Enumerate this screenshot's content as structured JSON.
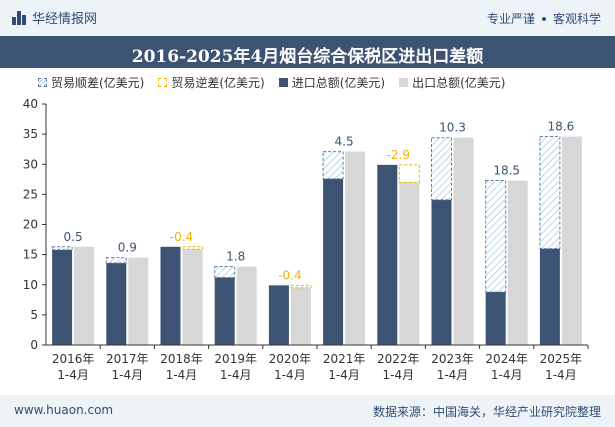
{
  "header": {
    "brand": "华经情报网",
    "tagline_left": "专业严谨",
    "tagline_right": "客观科学"
  },
  "footer": {
    "website": "www.huaon.com",
    "source": "数据来源：中国海关，华经产业研究院整理"
  },
  "colors": {
    "import": "#3d5373",
    "export": "#d7d7d7",
    "surplus_border": "#5b7fa8",
    "surplus_label": "#3d5373",
    "deficit_border": "#f0b400",
    "deficit_label": "#f0b400",
    "header_bg": "#3d5373"
  },
  "chart_data": {
    "type": "bar",
    "title": "2016-2025年4月烟台综合保税区进出口差额",
    "categories": [
      [
        "2016年",
        "1-4月"
      ],
      [
        "2017年",
        "1-4月"
      ],
      [
        "2018年",
        "1-4月"
      ],
      [
        "2019年",
        "1-4月"
      ],
      [
        "2020年",
        "1-4月"
      ],
      [
        "2021年",
        "1-4月"
      ],
      [
        "2022年",
        "1-4月"
      ],
      [
        "2023年",
        "1-4月"
      ],
      [
        "2024年",
        "1-4月"
      ],
      [
        "2025年",
        "1-4月"
      ]
    ],
    "series": [
      {
        "name": "进口总额(亿美元)",
        "values": [
          15.8,
          13.6,
          16.3,
          11.2,
          9.9,
          27.6,
          29.9,
          24.1,
          8.8,
          16.0
        ]
      },
      {
        "name": "出口总额(亿美元)",
        "values": [
          16.3,
          14.5,
          15.9,
          13.0,
          9.5,
          32.1,
          27.0,
          34.4,
          27.3,
          34.6
        ]
      }
    ],
    "balance": {
      "surplus_name": "贸易顺差(亿美元)",
      "deficit_name": "贸易逆差(亿美元)",
      "labels": [
        "0.5",
        "0.9",
        "-0.4",
        "1.8",
        "-0.4",
        "4.5",
        "-2.9",
        "10.3",
        "18.5",
        "18.6"
      ]
    },
    "ylim": [
      0,
      40
    ],
    "yticks": [
      0,
      5,
      10,
      15,
      20,
      25,
      30,
      35,
      40
    ],
    "grid": false,
    "legend": "top"
  }
}
